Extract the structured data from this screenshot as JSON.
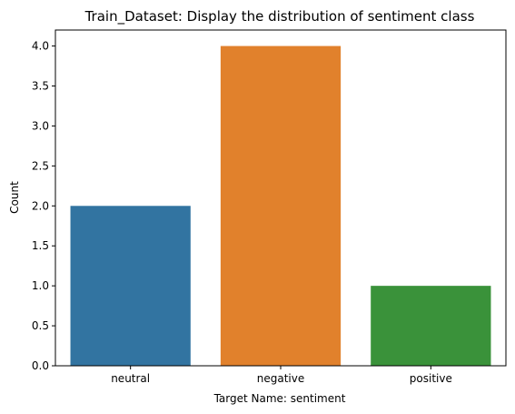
{
  "chart_data": {
    "type": "bar",
    "title": "Train_Dataset: Display the distribution of sentiment class",
    "xlabel": "Target Name: sentiment",
    "ylabel": "Count",
    "categories": [
      "neutral",
      "negative",
      "positive"
    ],
    "values": [
      2,
      4,
      1
    ],
    "colors": [
      "#3274a1",
      "#e1812c",
      "#3a923a"
    ],
    "ylim": [
      0,
      4.2
    ],
    "yticks": [
      "0.0",
      "0.5",
      "1.0",
      "1.5",
      "2.0",
      "2.5",
      "3.0",
      "3.5",
      "4.0"
    ],
    "grid": false,
    "legend": "none"
  }
}
